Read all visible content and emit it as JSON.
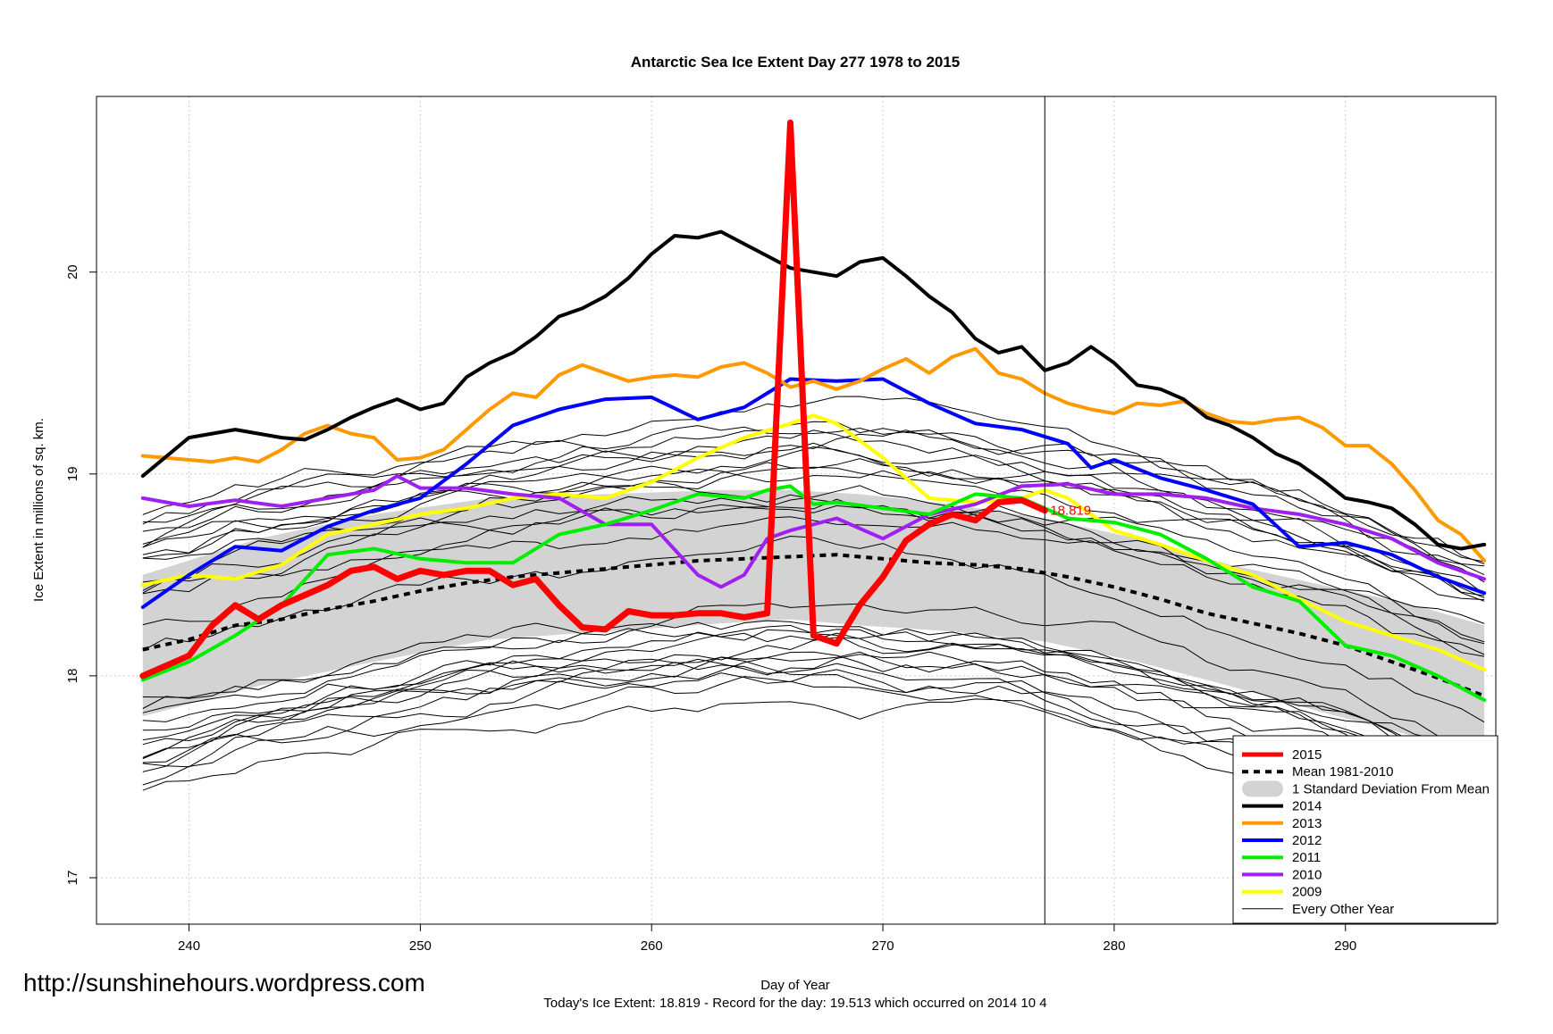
{
  "chart_data": {
    "type": "line",
    "title": "Antarctic Sea Ice Extent Day 277 1978 to 2015",
    "xlabel": "Day of Year",
    "ylabel": "Ice Extent in millions of sq. km.",
    "xlim": [
      236,
      296.5
    ],
    "ylim": [
      16.77,
      20.87
    ],
    "x_ticks": [
      240,
      250,
      260,
      270,
      280,
      290
    ],
    "y_ticks": [
      17,
      18,
      19,
      20
    ],
    "grid": true,
    "current_day": 277,
    "current_value": 18.819,
    "current_value_label": "18.819",
    "footnote": "Today's Ice Extent: 18.819  - Record for the day: 19.513 which occurred on 2014 10 4",
    "watermark": "http://sunshinehours.wordpress.com",
    "legend_position": "bottom-right",
    "legend": [
      {
        "label": "2015",
        "style": "line",
        "color": "#ff0000",
        "width": 5
      },
      {
        "label": "Mean 1981-2010",
        "style": "dashed",
        "color": "#000000",
        "width": 4
      },
      {
        "label": "1 Standard Deviation From Mean",
        "style": "band",
        "color": "#d3d3d3",
        "width": 14
      },
      {
        "label": "2014",
        "style": "line",
        "color": "#000000",
        "width": 4
      },
      {
        "label": "2013",
        "style": "line",
        "color": "#ff9900",
        "width": 4
      },
      {
        "label": "2012",
        "style": "line",
        "color": "#0000ff",
        "width": 4
      },
      {
        "label": "2011",
        "style": "line",
        "color": "#00ee00",
        "width": 4
      },
      {
        "label": "2010",
        "style": "line",
        "color": "#a020f0",
        "width": 4
      },
      {
        "label": "2009",
        "style": "line",
        "color": "#ffff00",
        "width": 4
      },
      {
        "label": "Every Other Year",
        "style": "thin",
        "color": "#000000",
        "width": 1
      }
    ],
    "std_band": {
      "x": [
        238,
        243,
        248,
        253,
        258,
        263,
        266,
        269,
        273,
        277,
        281,
        285,
        289,
        293,
        296
      ],
      "upper": [
        18.5,
        18.68,
        18.8,
        18.88,
        18.9,
        18.92,
        18.92,
        18.9,
        18.85,
        18.78,
        18.68,
        18.55,
        18.45,
        18.35,
        18.25
      ],
      "lower": [
        17.8,
        17.95,
        18.07,
        18.18,
        18.22,
        18.26,
        18.28,
        18.25,
        18.22,
        18.17,
        18.07,
        17.95,
        17.82,
        17.7,
        17.6
      ]
    },
    "mean": {
      "name": "Mean 1981-2010",
      "x": [
        238,
        240,
        242,
        244,
        246,
        248,
        250,
        252,
        254,
        256,
        258,
        260,
        262,
        264,
        266,
        268,
        270,
        272,
        274,
        276,
        278,
        280,
        282,
        284,
        286,
        288,
        290,
        292,
        294,
        296
      ],
      "y": [
        18.13,
        18.18,
        18.25,
        18.28,
        18.33,
        18.37,
        18.42,
        18.46,
        18.49,
        18.51,
        18.53,
        18.55,
        18.57,
        18.58,
        18.59,
        18.6,
        18.58,
        18.56,
        18.55,
        18.53,
        18.49,
        18.44,
        18.38,
        18.31,
        18.26,
        18.21,
        18.15,
        18.07,
        17.99,
        17.9
      ]
    },
    "series": [
      {
        "name": "2009",
        "color": "#ffff00",
        "width": 4,
        "x": [
          238,
          240,
          242,
          244,
          246,
          248,
          250,
          252,
          254,
          256,
          258,
          260,
          262,
          264,
          266,
          267,
          268,
          270,
          272,
          274,
          276,
          277,
          278,
          280,
          282,
          284,
          286,
          288,
          290,
          292,
          294,
          296
        ],
        "y": [
          18.45,
          18.5,
          18.48,
          18.55,
          18.7,
          18.75,
          18.8,
          18.83,
          18.88,
          18.9,
          18.88,
          18.96,
          19.08,
          19.18,
          19.25,
          19.29,
          19.25,
          19.08,
          18.88,
          18.86,
          18.88,
          18.92,
          18.88,
          18.72,
          18.65,
          18.57,
          18.5,
          18.38,
          18.27,
          18.2,
          18.13,
          18.03
        ]
      },
      {
        "name": "2010",
        "color": "#a020f0",
        "width": 4,
        "x": [
          238,
          240,
          242,
          244,
          246,
          248,
          249,
          250,
          252,
          254,
          256,
          258,
          260,
          262,
          263,
          264,
          265,
          266,
          268,
          270,
          272,
          274,
          276,
          278,
          280,
          282,
          284,
          286,
          288,
          290,
          292,
          294,
          296
        ],
        "y": [
          18.88,
          18.84,
          18.87,
          18.84,
          18.88,
          18.92,
          18.99,
          18.93,
          18.93,
          18.9,
          18.88,
          18.75,
          18.75,
          18.5,
          18.44,
          18.5,
          18.68,
          18.72,
          18.78,
          18.68,
          18.8,
          18.85,
          18.94,
          18.95,
          18.9,
          18.9,
          18.88,
          18.83,
          18.8,
          18.75,
          18.68,
          18.56,
          18.48
        ]
      },
      {
        "name": "2011",
        "color": "#00ee00",
        "width": 4,
        "x": [
          238,
          240,
          242,
          244,
          246,
          248,
          250,
          252,
          254,
          256,
          258,
          260,
          262,
          264,
          265,
          266,
          267,
          268,
          270,
          272,
          274,
          276,
          278,
          280,
          282,
          284,
          286,
          288,
          290,
          292,
          294,
          296
        ],
        "y": [
          17.98,
          18.07,
          18.2,
          18.35,
          18.6,
          18.63,
          18.58,
          18.56,
          18.56,
          18.7,
          18.75,
          18.82,
          18.9,
          18.88,
          18.92,
          18.94,
          18.85,
          18.86,
          18.83,
          18.8,
          18.9,
          18.88,
          18.78,
          18.76,
          18.7,
          18.58,
          18.44,
          18.37,
          18.15,
          18.1,
          18.0,
          17.88
        ]
      },
      {
        "name": "2012",
        "color": "#0000ff",
        "width": 4,
        "x": [
          238,
          240,
          242,
          244,
          246,
          248,
          250,
          252,
          254,
          256,
          258,
          260,
          262,
          264,
          266,
          268,
          270,
          272,
          274,
          276,
          278,
          279,
          280,
          282,
          284,
          286,
          288,
          290,
          292,
          294,
          296
        ],
        "y": [
          18.34,
          18.5,
          18.64,
          18.62,
          18.74,
          18.82,
          18.88,
          19.05,
          19.24,
          19.32,
          19.37,
          19.38,
          19.27,
          19.33,
          19.47,
          19.46,
          19.47,
          19.35,
          19.25,
          19.22,
          19.15,
          19.03,
          19.07,
          18.98,
          18.92,
          18.85,
          18.64,
          18.66,
          18.6,
          18.49,
          18.41
        ]
      },
      {
        "name": "2013",
        "color": "#ff9900",
        "width": 4,
        "x": [
          238,
          240,
          241,
          242,
          243,
          244,
          245,
          246,
          247,
          248,
          249,
          250,
          251,
          252,
          253,
          254,
          255,
          256,
          257,
          258,
          259,
          260,
          261,
          262,
          263,
          264,
          265,
          266,
          267,
          268,
          269,
          270,
          271,
          272,
          273,
          274,
          275,
          276,
          277,
          278,
          279,
          280,
          281,
          282,
          283,
          284,
          285,
          286,
          287,
          288,
          289,
          290,
          291,
          292,
          293,
          294,
          295,
          296
        ],
        "y": [
          19.09,
          19.07,
          19.06,
          19.08,
          19.06,
          19.12,
          19.2,
          19.24,
          19.2,
          19.18,
          19.07,
          19.08,
          19.12,
          19.22,
          19.32,
          19.4,
          19.38,
          19.49,
          19.54,
          19.5,
          19.46,
          19.48,
          19.49,
          19.48,
          19.53,
          19.55,
          19.5,
          19.43,
          19.46,
          19.42,
          19.46,
          19.52,
          19.57,
          19.5,
          19.58,
          19.62,
          19.5,
          19.47,
          19.4,
          19.35,
          19.32,
          19.3,
          19.35,
          19.34,
          19.36,
          19.3,
          19.26,
          19.25,
          19.27,
          19.28,
          19.23,
          19.14,
          19.14,
          19.05,
          18.92,
          18.77,
          18.7,
          18.57
        ]
      },
      {
        "name": "2014",
        "color": "#000000",
        "width": 4,
        "x": [
          238,
          240,
          241,
          242,
          243,
          244,
          245,
          246,
          247,
          248,
          249,
          250,
          251,
          252,
          253,
          254,
          255,
          256,
          257,
          258,
          259,
          260,
          261,
          262,
          263,
          264,
          265,
          266,
          267,
          268,
          269,
          270,
          271,
          272,
          273,
          274,
          275,
          276,
          277,
          278,
          279,
          280,
          281,
          282,
          283,
          284,
          285,
          286,
          287,
          288,
          289,
          290,
          291,
          292,
          293,
          294,
          295,
          296
        ],
        "y": [
          18.99,
          19.18,
          19.2,
          19.22,
          19.2,
          19.18,
          19.17,
          19.22,
          19.28,
          19.33,
          19.37,
          19.32,
          19.35,
          19.48,
          19.55,
          19.6,
          19.68,
          19.78,
          19.82,
          19.88,
          19.97,
          20.09,
          20.18,
          20.17,
          20.2,
          20.14,
          20.08,
          20.02,
          20.0,
          19.98,
          20.05,
          20.07,
          19.98,
          19.88,
          19.8,
          19.67,
          19.6,
          19.63,
          19.513,
          19.55,
          19.63,
          19.55,
          19.44,
          19.42,
          19.37,
          19.28,
          19.24,
          19.18,
          19.1,
          19.05,
          18.97,
          18.88,
          18.86,
          18.83,
          18.75,
          18.65,
          18.63,
          18.65
        ]
      },
      {
        "name": "2015",
        "color": "#ff0000",
        "width": 7,
        "x": [
          238,
          240,
          241,
          242,
          243,
          244,
          245,
          246,
          247,
          248,
          249,
          250,
          251,
          252,
          253,
          254,
          255,
          256,
          257,
          258,
          259,
          260,
          261,
          262,
          263,
          264,
          265,
          266,
          267,
          268,
          269,
          270,
          271,
          272,
          273,
          274,
          275,
          276,
          277
        ],
        "y": [
          18.0,
          18.1,
          18.25,
          18.35,
          18.28,
          18.35,
          18.4,
          18.45,
          18.52,
          18.54,
          18.48,
          18.52,
          18.5,
          18.52,
          18.52,
          18.45,
          18.48,
          18.35,
          18.24,
          18.23,
          18.32,
          18.3,
          18.3,
          18.31,
          18.31,
          18.29,
          18.31,
          20.74,
          18.2,
          18.16,
          18.35,
          18.49,
          18.67,
          18.75,
          18.8,
          18.77,
          18.86,
          18.87,
          18.819
        ]
      }
    ]
  }
}
